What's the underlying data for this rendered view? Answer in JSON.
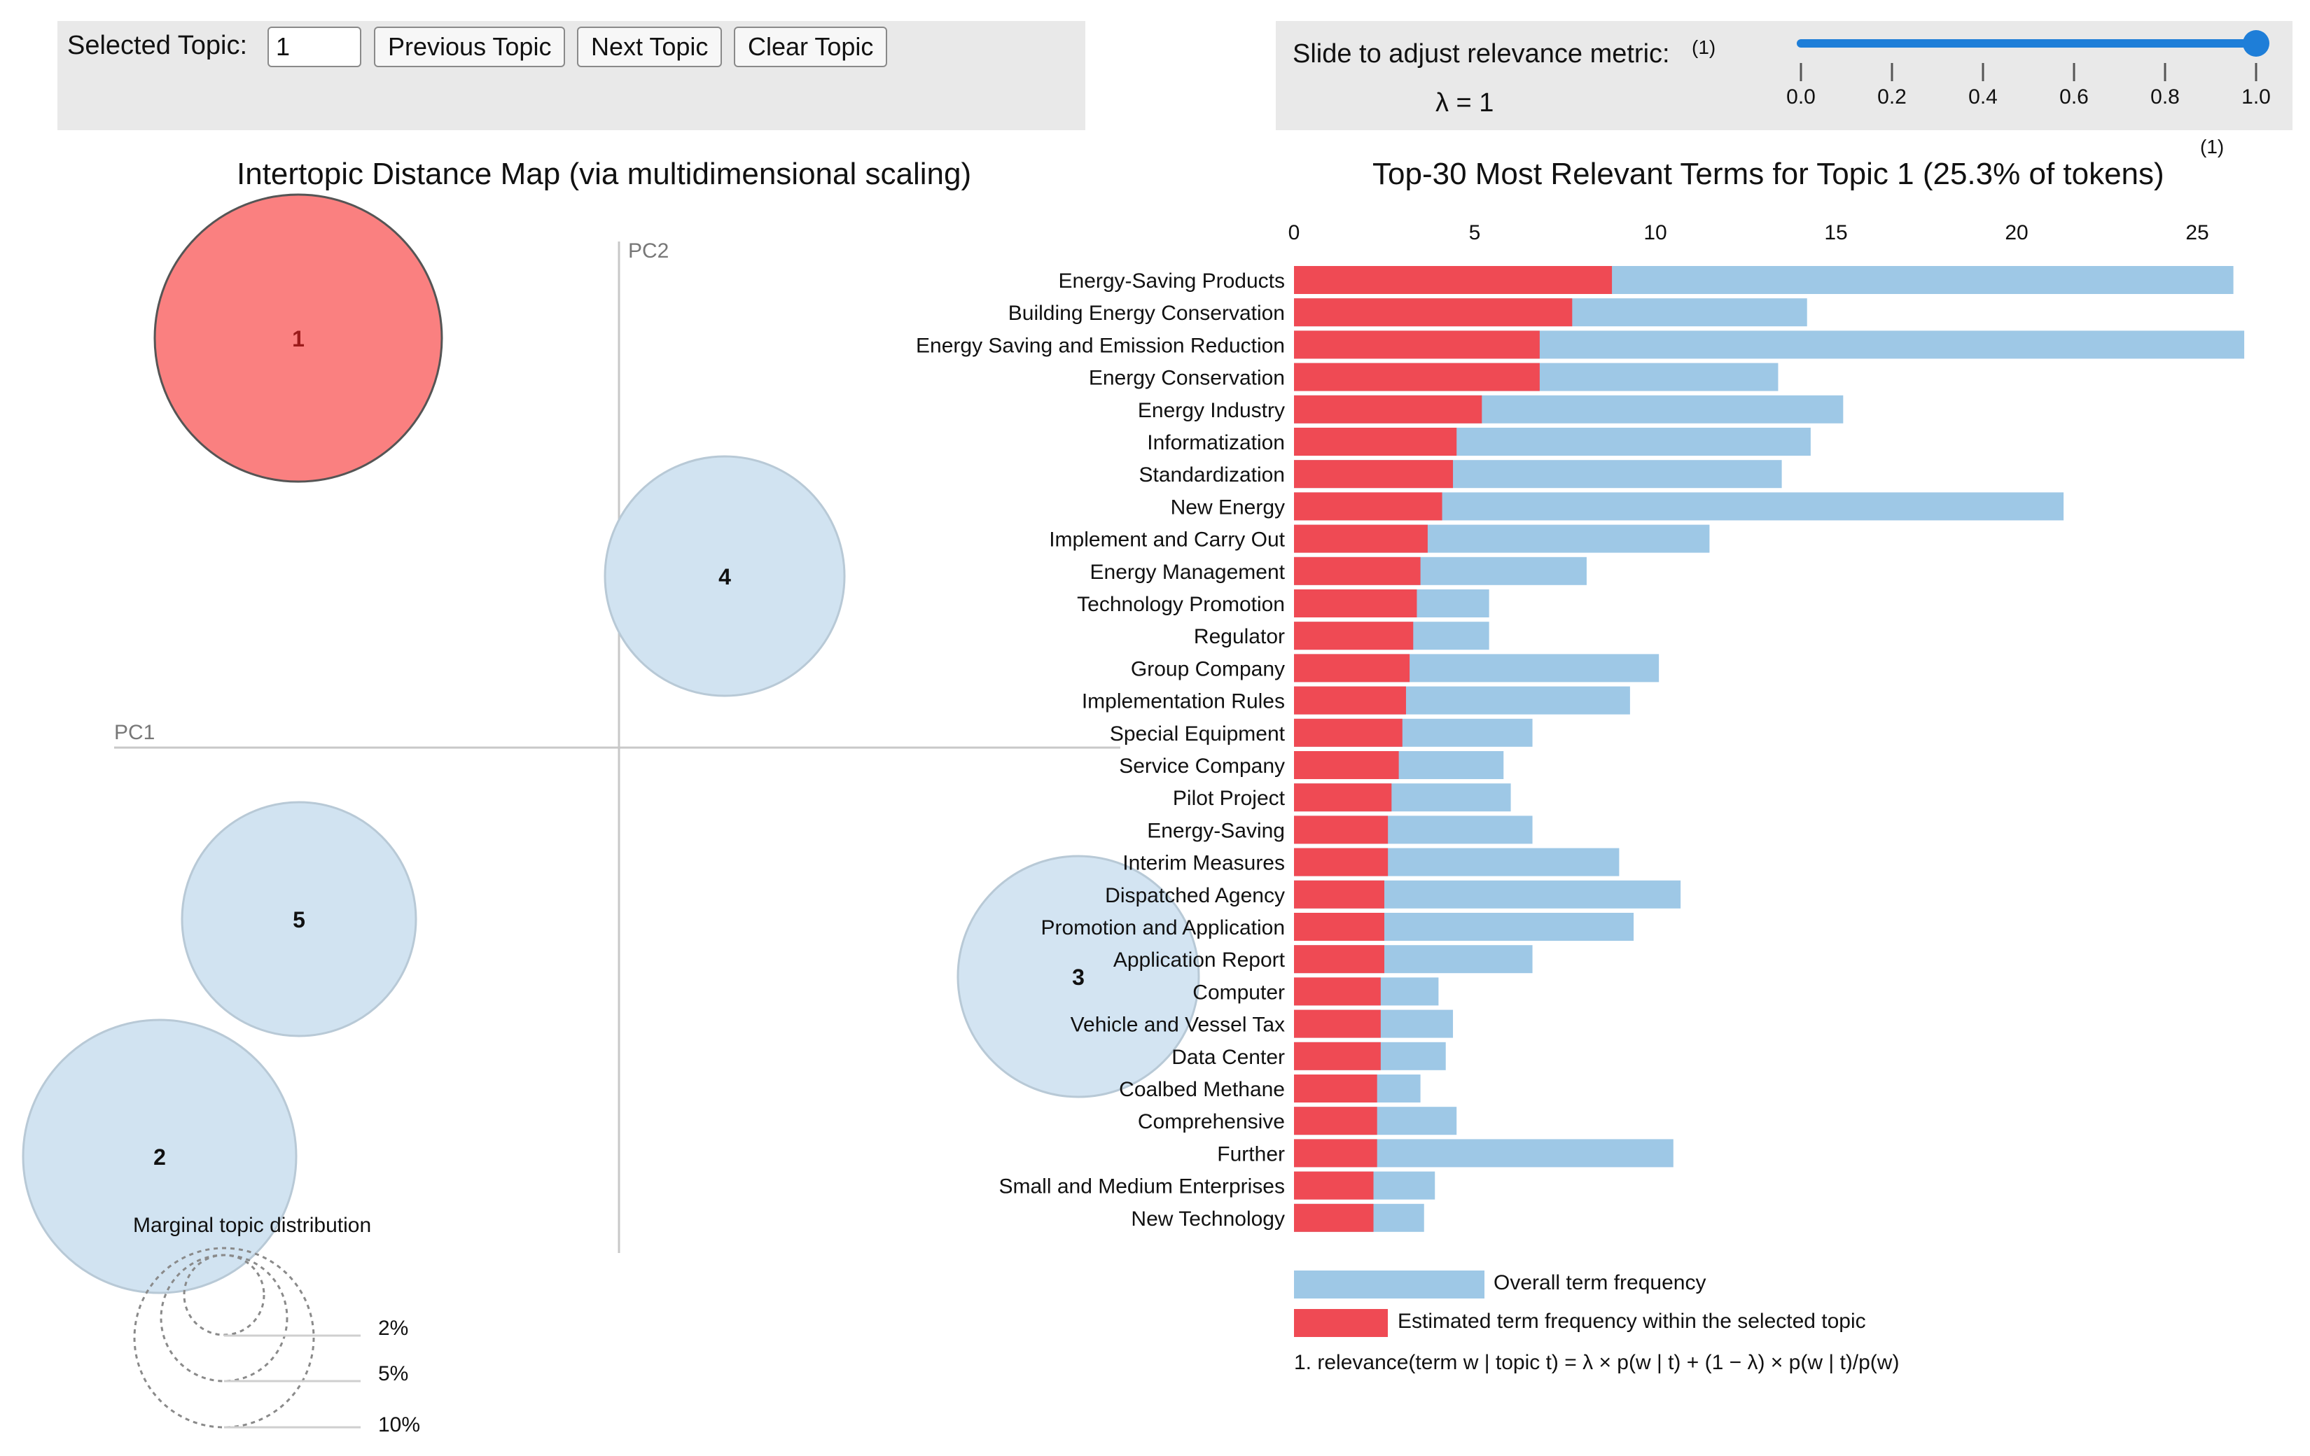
{
  "topic_controls": {
    "label": "Selected Topic:",
    "input_value": "1",
    "prev_label": "Previous Topic",
    "next_label": "Next Topic",
    "clear_label": "Clear Topic"
  },
  "lambda_control": {
    "label": "Slide to adjust relevance metric:",
    "footnote_mark": "(1)",
    "value_text": "λ = 1",
    "value": 1.0,
    "ticks": [
      "0.0",
      "0.2",
      "0.4",
      "0.6",
      "0.8",
      "1.0"
    ]
  },
  "map": {
    "title": "Intertopic Distance Map (via multidimensional scaling)",
    "pc1_label": "PC1",
    "pc2_label": "PC2",
    "topics": [
      {
        "id": "1",
        "selected": true
      },
      {
        "id": "2",
        "selected": false
      },
      {
        "id": "3",
        "selected": false
      },
      {
        "id": "4",
        "selected": false
      },
      {
        "id": "5",
        "selected": false
      }
    ],
    "marginal": {
      "title": "Marginal topic distribution",
      "labels": [
        "2%",
        "5%",
        "10%"
      ]
    }
  },
  "bar_panel": {
    "title": "Top-30 Most Relevant Terms for Topic 1 (25.3% of tokens)",
    "footnote_mark": "(1)",
    "legend": {
      "overall": "Overall term frequency",
      "estimated": "Estimated term frequency within the selected topic"
    },
    "footnote": "1. relevance(term w | topic t) = λ × p(w | t) + (1 − λ) × p(w | t)/p(w)"
  },
  "colors": {
    "overall_bar": "#9ec8e6",
    "topic_bar": "#ef4a54",
    "selected_circle": "#fa8080",
    "unselected_circle": "#d1e3f1"
  },
  "chart_data": {
    "type": "bar",
    "orientation": "horizontal",
    "title": "Top-30 Most Relevant Terms for Topic 1 (25.3% of tokens)",
    "xlim": [
      0,
      26.4
    ],
    "x_ticks": [
      "0",
      "5",
      "10",
      "15",
      "20",
      "25"
    ],
    "categories": [
      "Energy-Saving Products",
      "Building Energy Conservation",
      "Energy Saving and Emission Reduction",
      "Energy Conservation",
      "Energy Industry",
      "Informatization",
      "Standardization",
      "New Energy",
      "Implement and Carry Out",
      "Energy Management",
      "Technology Promotion",
      "Regulator",
      "Group Company",
      "Implementation Rules",
      "Special Equipment",
      "Service Company",
      "Pilot Project",
      "Energy-Saving",
      "Interim Measures",
      "Dispatched Agency",
      "Promotion and Application",
      "Application Report",
      "Computer",
      "Vehicle and Vessel Tax",
      "Data Center",
      "Coalbed Methane",
      "Comprehensive",
      "Further",
      "Small and Medium Enterprises",
      "New Technology"
    ],
    "series": [
      {
        "name": "Overall term frequency",
        "values": [
          26.0,
          14.2,
          26.3,
          13.4,
          15.2,
          14.3,
          13.5,
          21.3,
          11.5,
          8.1,
          5.4,
          5.4,
          10.1,
          9.3,
          6.6,
          5.8,
          6.0,
          6.6,
          9.0,
          10.7,
          9.4,
          6.6,
          4.0,
          4.4,
          4.2,
          3.5,
          4.5,
          10.5,
          3.9,
          3.6
        ]
      },
      {
        "name": "Estimated term frequency within the selected topic",
        "values": [
          8.8,
          7.7,
          6.8,
          6.8,
          5.2,
          4.5,
          4.4,
          4.1,
          3.7,
          3.5,
          3.4,
          3.3,
          3.2,
          3.1,
          3.0,
          2.9,
          2.7,
          2.6,
          2.6,
          2.5,
          2.5,
          2.5,
          2.4,
          2.4,
          2.4,
          2.3,
          2.3,
          2.3,
          2.2,
          2.2
        ]
      }
    ]
  }
}
